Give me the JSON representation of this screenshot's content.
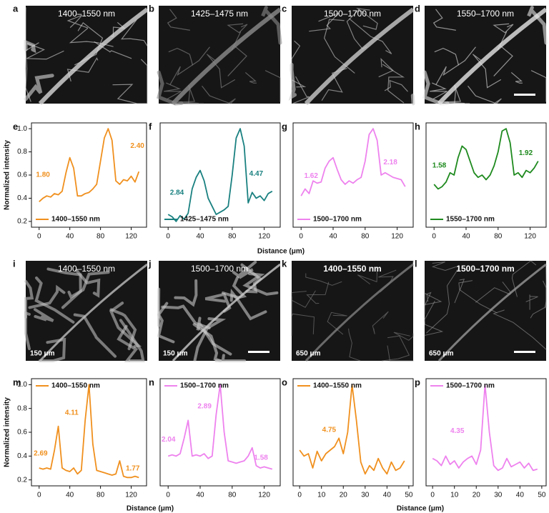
{
  "image_panels": [
    {
      "panel": "a",
      "caption": "1400–1550 nm"
    },
    {
      "panel": "b",
      "caption": "1425–1475 nm"
    },
    {
      "panel": "c",
      "caption": "1500–1700 nm"
    },
    {
      "panel": "d",
      "caption": "1550–1700 nm"
    },
    {
      "panel": "i",
      "caption": "1400–1550 nm",
      "scale": "150 μm"
    },
    {
      "panel": "j",
      "caption": "1500–1700 nm",
      "scale": "150 μm"
    },
    {
      "panel": "k",
      "caption": "1400–1550 nm",
      "scale": "650 μm"
    },
    {
      "panel": "l",
      "caption": "1500–1700 nm",
      "scale": "650 μm"
    }
  ],
  "labels": {
    "y_top": "Normalized intensity",
    "x_top": "Distance (μm)",
    "y_bottom": "Normalized intensity",
    "x_bottom_left": "Distance (μm)",
    "x_bottom_right": "Distance (μm)"
  },
  "chart_data": [
    {
      "type": "line",
      "panel": "e",
      "legend": "lower left",
      "x": [
        0,
        5,
        10,
        15,
        20,
        25,
        30,
        35,
        40,
        45,
        50,
        55,
        60,
        65,
        70,
        75,
        80,
        85,
        90,
        95,
        100,
        105,
        110,
        115,
        120,
        125,
        130
      ],
      "xlim": [
        -10,
        140
      ],
      "xticks": [
        0,
        40,
        80,
        120
      ],
      "ylim": [
        0.15,
        1.05
      ],
      "yticks": [
        0.2,
        0.4,
        0.6,
        0.8,
        {
          "value": 1,
          "label": "1.0"
        }
      ],
      "series": [
        {
          "name": "1400–1550 nm",
          "color": "#f0901e",
          "values": [
            0.37,
            0.4,
            0.42,
            0.41,
            0.44,
            0.43,
            0.46,
            0.62,
            0.75,
            0.66,
            0.42,
            0.42,
            0.44,
            0.45,
            0.48,
            0.52,
            0.72,
            0.92,
            1.0,
            0.9,
            0.55,
            0.52,
            0.56,
            0.55,
            0.59,
            0.54,
            0.63
          ]
        }
      ],
      "annotations": [
        "1.80",
        "2.40"
      ]
    },
    {
      "type": "line",
      "panel": "f",
      "legend": "lower left",
      "x": [
        0,
        5,
        10,
        15,
        20,
        25,
        30,
        35,
        40,
        45,
        50,
        55,
        60,
        65,
        70,
        75,
        80,
        85,
        90,
        95,
        100,
        105,
        110,
        115,
        120,
        125,
        130
      ],
      "xlim": [
        -10,
        140
      ],
      "xticks": [
        0,
        40,
        80,
        120
      ],
      "ylim": [
        0.15,
        1.05
      ],
      "series": [
        {
          "name": "1425–1475 nm",
          "color": "#1a8080",
          "values": [
            0.26,
            0.24,
            0.2,
            0.25,
            0.22,
            0.27,
            0.48,
            0.58,
            0.64,
            0.55,
            0.4,
            0.33,
            0.26,
            0.28,
            0.3,
            0.33,
            0.6,
            0.92,
            1.0,
            0.85,
            0.36,
            0.45,
            0.4,
            0.42,
            0.38,
            0.44,
            0.46
          ]
        }
      ],
      "annotations": [
        "2.84",
        "4.47"
      ]
    },
    {
      "type": "line",
      "panel": "g",
      "legend": "lower left",
      "x": [
        0,
        5,
        10,
        15,
        20,
        25,
        30,
        35,
        40,
        45,
        50,
        55,
        60,
        65,
        70,
        75,
        80,
        85,
        90,
        95,
        100,
        105,
        110,
        115,
        120,
        125,
        130
      ],
      "xlim": [
        -10,
        140
      ],
      "xticks": [
        0,
        40,
        80,
        120
      ],
      "ylim": [
        0.15,
        1.05
      ],
      "series": [
        {
          "name": "1500–1700 nm",
          "color": "#ee82ee",
          "values": [
            0.42,
            0.48,
            0.44,
            0.55,
            0.53,
            0.54,
            0.66,
            0.72,
            0.75,
            0.65,
            0.56,
            0.52,
            0.55,
            0.53,
            0.56,
            0.58,
            0.72,
            0.95,
            1.0,
            0.9,
            0.6,
            0.62,
            0.6,
            0.58,
            0.57,
            0.56,
            0.5
          ]
        }
      ],
      "annotations": [
        "1.62",
        "2.18"
      ]
    },
    {
      "type": "line",
      "panel": "h",
      "legend": "lower left",
      "x": [
        0,
        5,
        10,
        15,
        20,
        25,
        30,
        35,
        40,
        45,
        50,
        55,
        60,
        65,
        70,
        75,
        80,
        85,
        90,
        95,
        100,
        105,
        110,
        115,
        120,
        125,
        130
      ],
      "xlim": [
        -10,
        140
      ],
      "xticks": [
        0,
        40,
        80,
        120
      ],
      "ylim": [
        0.15,
        1.05
      ],
      "series": [
        {
          "name": "1550–1700 nm",
          "color": "#1e8a1e",
          "values": [
            0.52,
            0.48,
            0.5,
            0.54,
            0.62,
            0.6,
            0.75,
            0.85,
            0.82,
            0.72,
            0.62,
            0.58,
            0.6,
            0.56,
            0.6,
            0.68,
            0.8,
            0.98,
            1.0,
            0.88,
            0.6,
            0.62,
            0.58,
            0.64,
            0.62,
            0.66,
            0.72
          ]
        }
      ],
      "annotations": [
        "1.58",
        "1.92"
      ]
    },
    {
      "type": "line",
      "panel": "m",
      "legend": "upper left",
      "x": [
        0,
        5,
        10,
        15,
        20,
        25,
        30,
        35,
        40,
        45,
        50,
        55,
        60,
        65,
        70,
        75,
        80,
        85,
        90,
        95,
        100,
        105,
        110,
        115,
        120,
        125,
        130
      ],
      "xlim": [
        -10,
        140
      ],
      "xticks": [
        0,
        40,
        80,
        120
      ],
      "ylim": [
        0.15,
        1.05
      ],
      "yticks": [
        0.2,
        0.4,
        0.6,
        0.8,
        {
          "value": 1,
          "label": "1.0"
        }
      ],
      "series": [
        {
          "name": "1400–1550 nm",
          "color": "#f0901e",
          "values": [
            0.3,
            0.29,
            0.3,
            0.29,
            0.45,
            0.65,
            0.3,
            0.28,
            0.27,
            0.3,
            0.25,
            0.28,
            0.7,
            1.0,
            0.5,
            0.28,
            0.27,
            0.26,
            0.25,
            0.24,
            0.25,
            0.36,
            0.23,
            0.22,
            0.22,
            0.23,
            0.22
          ]
        }
      ],
      "annotations": [
        "2.69",
        "4.11",
        "1.77"
      ]
    },
    {
      "type": "line",
      "panel": "n",
      "legend": "upper left",
      "x": [
        0,
        5,
        10,
        15,
        20,
        25,
        30,
        35,
        40,
        45,
        50,
        55,
        60,
        65,
        70,
        75,
        80,
        85,
        90,
        95,
        100,
        105,
        110,
        115,
        120,
        125,
        130
      ],
      "xlim": [
        -10,
        140
      ],
      "xticks": [
        0,
        40,
        80,
        120
      ],
      "ylim": [
        0.15,
        1.05
      ],
      "series": [
        {
          "name": "1500–1700 nm",
          "color": "#ee82ee",
          "values": [
            0.4,
            0.41,
            0.4,
            0.42,
            0.55,
            0.7,
            0.4,
            0.41,
            0.4,
            0.42,
            0.38,
            0.4,
            0.75,
            1.0,
            0.6,
            0.36,
            0.35,
            0.34,
            0.35,
            0.36,
            0.4,
            0.47,
            0.32,
            0.3,
            0.31,
            0.3,
            0.29
          ]
        }
      ],
      "annotations": [
        "2.04",
        "2.89",
        "1.58"
      ]
    },
    {
      "type": "line",
      "panel": "o",
      "legend": "upper left",
      "x": [
        0,
        2,
        4,
        6,
        8,
        10,
        12,
        14,
        16,
        18,
        20,
        22,
        24,
        26,
        28,
        30,
        32,
        34,
        36,
        38,
        40,
        42,
        44,
        46,
        48
      ],
      "xlim": [
        -3,
        52
      ],
      "xticks": [
        0,
        10,
        20,
        30,
        40,
        50
      ],
      "ylim": [
        0.15,
        1.05
      ],
      "series": [
        {
          "name": "1400–1550 nm",
          "color": "#f0901e",
          "values": [
            0.45,
            0.4,
            0.42,
            0.3,
            0.44,
            0.36,
            0.42,
            0.45,
            0.48,
            0.55,
            0.42,
            0.6,
            1.0,
            0.7,
            0.35,
            0.25,
            0.32,
            0.28,
            0.38,
            0.3,
            0.25,
            0.35,
            0.28,
            0.3,
            0.36
          ]
        }
      ],
      "annotations": [
        "4.75"
      ]
    },
    {
      "type": "line",
      "panel": "p",
      "legend": "upper left",
      "x": [
        0,
        2,
        4,
        6,
        8,
        10,
        12,
        14,
        16,
        18,
        20,
        22,
        24,
        26,
        28,
        30,
        32,
        34,
        36,
        38,
        40,
        42,
        44,
        46,
        48
      ],
      "xlim": [
        -3,
        52
      ],
      "xticks": [
        0,
        10,
        20,
        30,
        40,
        50
      ],
      "ylim": [
        0.15,
        1.05
      ],
      "series": [
        {
          "name": "1500–1700 nm",
          "color": "#ee82ee",
          "values": [
            0.38,
            0.36,
            0.32,
            0.4,
            0.33,
            0.36,
            0.3,
            0.35,
            0.38,
            0.4,
            0.33,
            0.45,
            1.0,
            0.6,
            0.32,
            0.28,
            0.3,
            0.38,
            0.31,
            0.33,
            0.35,
            0.3,
            0.34,
            0.28,
            0.29
          ]
        }
      ],
      "annotations": [
        "4.35"
      ]
    }
  ]
}
